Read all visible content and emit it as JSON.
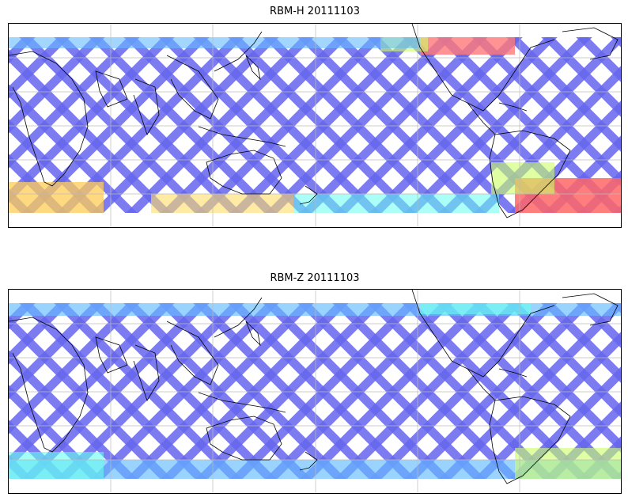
{
  "panels": [
    {
      "title": "RBM-H 20111103",
      "swath_color": "#6666ee",
      "high_latitude_colors": [
        "#66bbff",
        "#66ffee",
        "#ccff66",
        "#ffcc55",
        "#ff6666"
      ]
    },
    {
      "title": "RBM-Z 20111103",
      "swath_color": "#6666ee",
      "high_latitude_colors": [
        "#66bbff",
        "#66ffee",
        "#ccff66"
      ]
    }
  ],
  "colors": {
    "coastline": "#000000",
    "gridline": "#bbbbbb",
    "background": "#ffffff"
  }
}
